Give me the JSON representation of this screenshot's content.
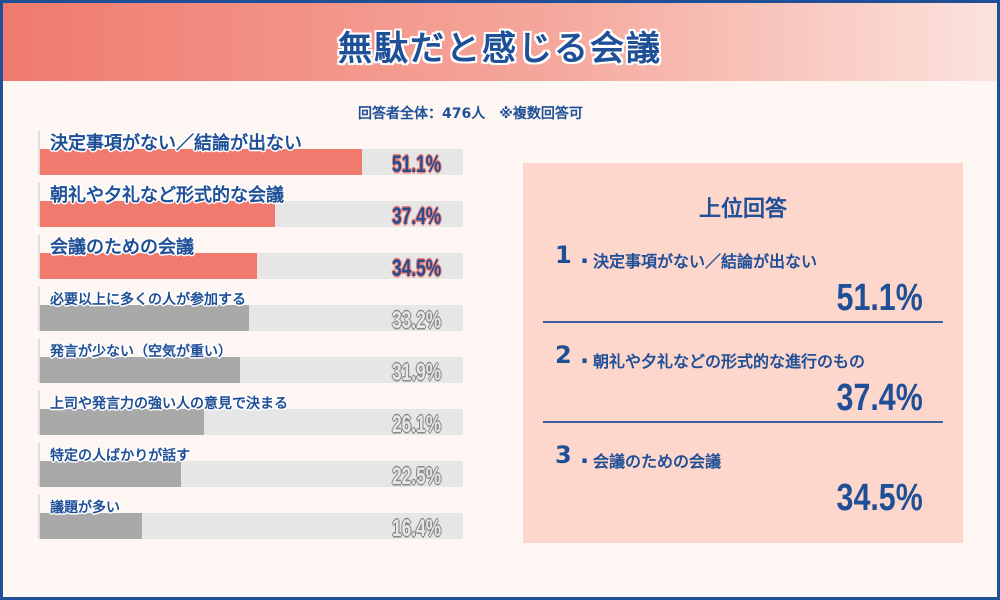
{
  "title": "無駄だと感じる会議",
  "note": "回答者全体：476人　※複数回答可",
  "colors": {
    "highlight": "#f07a6e",
    "normal": "#a9a9a9",
    "track": "#e6e6e6",
    "text": "#1f4f96"
  },
  "chart_data": {
    "type": "bar",
    "orientation": "horizontal",
    "xlim": [
      0,
      67
    ],
    "categories": [
      "決定事項がない／結論が出ない",
      "朝礼や夕礼など形式的な会議",
      "会議のための会議",
      "必要以上に多くの人が参加する",
      "発言が少ない（空気が重い）",
      "上司や発言力の強い人の意見で決まる",
      "特定の人ばかりが話す",
      "議題が多い"
    ],
    "values": [
      51.1,
      37.4,
      34.5,
      33.2,
      31.9,
      26.1,
      22.5,
      16.4
    ],
    "labels": [
      "51.1%",
      "37.4%",
      "34.5%",
      "33.2%",
      "31.9%",
      "26.1%",
      "22.5%",
      "16.4%"
    ],
    "highlighted_top": 3
  },
  "top_panel": {
    "title": "上位回答",
    "items": [
      {
        "rank": "1 .",
        "label": "決定事項がない／結論が出ない",
        "value": "51.1%"
      },
      {
        "rank": "2 .",
        "label": "朝礼や夕礼などの形式的な進行のもの",
        "value": "37.4%"
      },
      {
        "rank": "3 .",
        "label": "会議のための会議",
        "value": "34.5%"
      }
    ]
  }
}
